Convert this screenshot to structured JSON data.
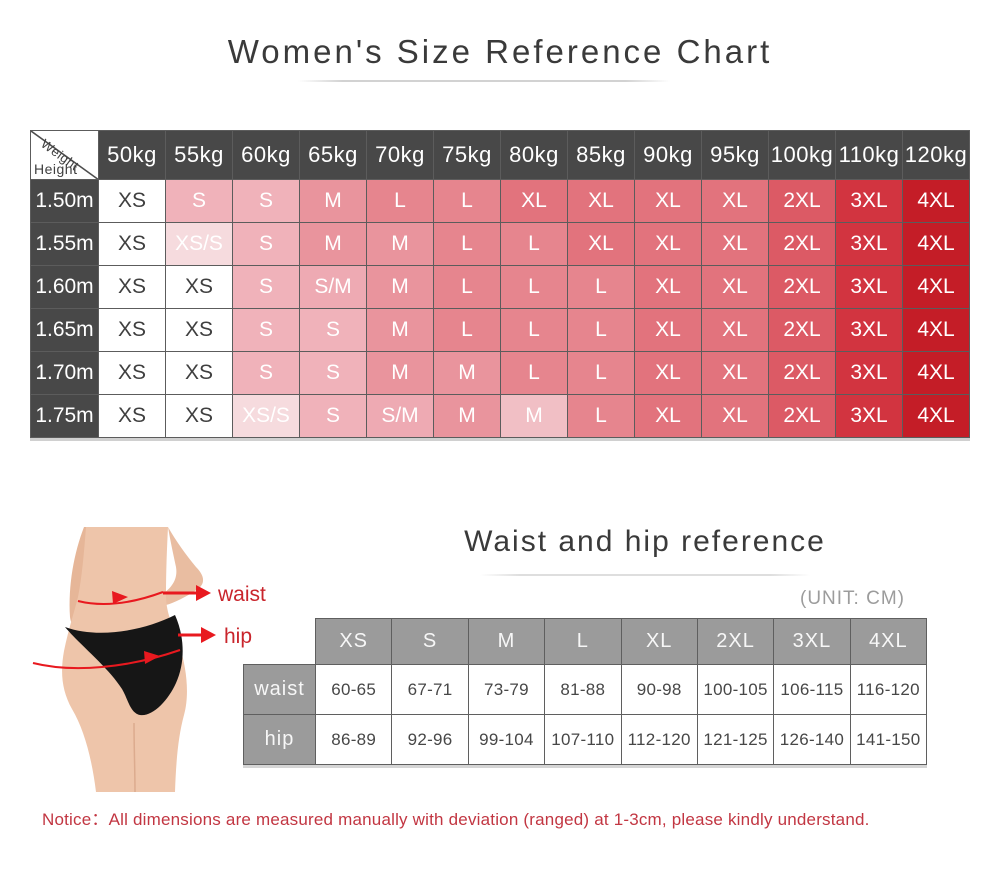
{
  "page_title": "Women's Size Reference Chart",
  "figure": {
    "waist_label": "waist",
    "hip_label": "hip"
  },
  "notice": {
    "text": "Notice：All dimensions are measured manually with deviation (ranged) at 1-3cm, please kindly understand."
  },
  "colors": {
    "header_bg": "#484848",
    "table2_gray": "#9b9b9b",
    "accent_red": "#e8191f",
    "label_red": "#c9252c",
    "notice_red": "#c23642",
    "size_colors": {
      "XS": "#ffffff",
      "XS/S": "#f6dbde",
      "S": "#f0b2ba",
      "S/M": "#eeaab3",
      "M": "#e9949d",
      "L": "#e6858e",
      "XL": "#e2737d",
      "2XL": "#dc5a65",
      "3XL": "#d23440",
      "4XL": "#c41d27"
    }
  },
  "cell_overrides": [
    {
      "row": 5,
      "col": 6,
      "color": "#f1bfc5"
    }
  ],
  "chart_data": [
    {
      "type": "table",
      "title": "Women's Size Reference Chart",
      "corner": {
        "top_label": "Weight",
        "bottom_label": "Height"
      },
      "columns": [
        "50kg",
        "55kg",
        "60kg",
        "65kg",
        "70kg",
        "75kg",
        "80kg",
        "85kg",
        "90kg",
        "95kg",
        "100kg",
        "110kg",
        "120kg"
      ],
      "row_labels": [
        "1.50m",
        "1.55m",
        "1.60m",
        "1.65m",
        "1.70m",
        "1.75m"
      ],
      "rows": [
        [
          "XS",
          "S",
          "S",
          "M",
          "L",
          "L",
          "XL",
          "XL",
          "XL",
          "XL",
          "2XL",
          "3XL",
          "4XL"
        ],
        [
          "XS",
          "XS/S",
          "S",
          "M",
          "M",
          "L",
          "L",
          "XL",
          "XL",
          "XL",
          "2XL",
          "3XL",
          "4XL"
        ],
        [
          "XS",
          "XS",
          "S",
          "S/M",
          "M",
          "L",
          "L",
          "L",
          "XL",
          "XL",
          "2XL",
          "3XL",
          "4XL"
        ],
        [
          "XS",
          "XS",
          "S",
          "S",
          "M",
          "L",
          "L",
          "L",
          "XL",
          "XL",
          "2XL",
          "3XL",
          "4XL"
        ],
        [
          "XS",
          "XS",
          "S",
          "S",
          "M",
          "M",
          "L",
          "L",
          "XL",
          "XL",
          "2XL",
          "3XL",
          "4XL"
        ],
        [
          "XS",
          "XS",
          "XS/S",
          "S",
          "S/M",
          "M",
          "M",
          "L",
          "XL",
          "XL",
          "2XL",
          "3XL",
          "4XL"
        ]
      ]
    },
    {
      "type": "table",
      "title": "Waist and hip reference",
      "unit": "(UNIT: CM)",
      "columns": [
        "XS",
        "S",
        "M",
        "L",
        "XL",
        "2XL",
        "3XL",
        "4XL"
      ],
      "row_labels": [
        "waist",
        "hip"
      ],
      "rows": [
        [
          "60-65",
          "67-71",
          "73-79",
          "81-88",
          "90-98",
          "100-105",
          "106-115",
          "116-120"
        ],
        [
          "86-89",
          "92-96",
          "99-104",
          "107-110",
          "112-120",
          "121-125",
          "126-140",
          "141-150"
        ]
      ]
    }
  ]
}
